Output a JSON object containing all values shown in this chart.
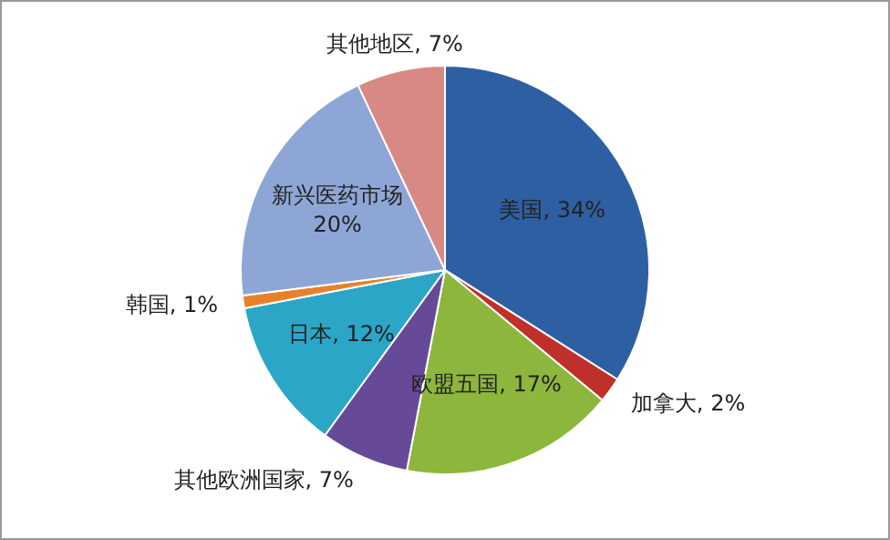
{
  "chart_data": {
    "type": "pie",
    "categories": [
      "美国",
      "加拿大",
      "欧盟五国",
      "其他欧洲国家",
      "日本",
      "韩国",
      "新兴医药市场",
      "其他地区"
    ],
    "values": [
      34,
      2,
      17,
      7,
      12,
      1,
      20,
      7
    ],
    "value_labels": [
      "34%",
      "2%",
      "17%",
      "7%",
      "12%",
      "1%",
      "20%",
      "7%"
    ],
    "colors": [
      "#2e5fa3",
      "#c0302a",
      "#8db63c",
      "#674a97",
      "#2ca6c6",
      "#e8822a",
      "#8ea6d6",
      "#d98985"
    ],
    "legend": false
  }
}
